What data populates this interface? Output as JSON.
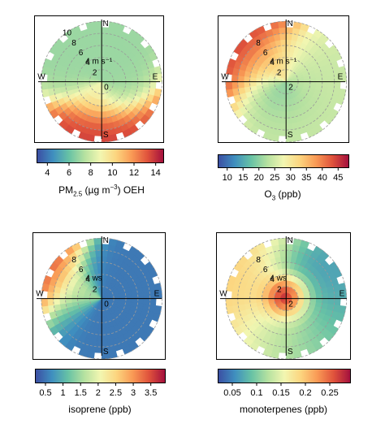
{
  "chart_data": [
    {
      "type": "heatmap",
      "subtype": "polar-plot",
      "variable": "PM2.5 OEH",
      "unit_label": {
        "main": "PM",
        "sub": "2.5",
        "mid": " (µg m",
        "sup": "−3",
        "end": ") OEH"
      },
      "directions": [
        "N",
        "E",
        "S",
        "W"
      ],
      "speed_rings": [
        "2",
        "4",
        "6",
        "8",
        "10"
      ],
      "speed_unit": "4 m s⁻¹",
      "origin_label": "0",
      "colorbar": {
        "ticks": [
          "4",
          "6",
          "8",
          "10",
          "12",
          "14"
        ],
        "min": 3,
        "max": 15
      },
      "regions": [
        {
          "dir_deg": 180,
          "speed": 6.5,
          "spread_deg": 30,
          "value": 14
        },
        {
          "dir_deg": 190,
          "speed": 3,
          "spread_deg": 40,
          "value": 9
        },
        {
          "dir_deg": 120,
          "speed": 3,
          "spread_deg": 40,
          "value": 7
        },
        {
          "dir_deg": 300,
          "speed": 5,
          "spread_deg": 30,
          "value": 7
        }
      ]
    },
    {
      "type": "heatmap",
      "subtype": "polar-plot",
      "variable": "O3",
      "unit_label": {
        "main": "O",
        "sub": "3",
        "mid": " (ppb)",
        "sup": "",
        "end": ""
      },
      "directions": [
        "N",
        "E",
        "S",
        "W"
      ],
      "speed_rings": [
        "2",
        "4",
        "6",
        "8"
      ],
      "speed_unit": "4 m s⁻¹",
      "origin_label": "2",
      "colorbar": {
        "ticks": [
          "10",
          "15",
          "20",
          "25",
          "30",
          "35",
          "40",
          "45"
        ],
        "min": 7,
        "max": 48
      },
      "regions": [
        {
          "dir_deg": 315,
          "speed": 8,
          "spread_deg": 25,
          "value": 45
        },
        {
          "dir_deg": 320,
          "speed": 5,
          "spread_deg": 40,
          "value": 35
        },
        {
          "dir_deg": 90,
          "speed": 5,
          "spread_deg": 80,
          "value": 24
        },
        {
          "dir_deg": 200,
          "speed": 3,
          "spread_deg": 60,
          "value": 20
        }
      ]
    },
    {
      "type": "heatmap",
      "subtype": "polar-plot",
      "variable": "isoprene",
      "unit_label": {
        "main": "isoprene (ppb)",
        "sub": "",
        "mid": "",
        "sup": "",
        "end": ""
      },
      "directions": [
        "N",
        "E",
        "S",
        "W"
      ],
      "speed_rings": [
        "2",
        "4",
        "6",
        "8"
      ],
      "speed_unit": "4 ws",
      "origin_label": "0",
      "colorbar": {
        "ticks": [
          "0.5",
          "1",
          "1.5",
          "2",
          "2.5",
          "3",
          "3.5"
        ],
        "min": 0.2,
        "max": 3.9
      },
      "regions": [
        {
          "dir_deg": 300,
          "speed": 8,
          "spread_deg": 20,
          "value": 3.6
        },
        {
          "dir_deg": 290,
          "speed": 5,
          "spread_deg": 30,
          "value": 1.8
        },
        {
          "dir_deg": 90,
          "speed": 5,
          "spread_deg": 120,
          "value": 0.5
        }
      ]
    },
    {
      "type": "heatmap",
      "subtype": "polar-plot",
      "variable": "monoterpenes",
      "unit_label": {
        "main": "monoterpenes (ppb)",
        "sub": "",
        "mid": "",
        "sup": "",
        "end": ""
      },
      "directions": [
        "N",
        "E",
        "S",
        "W"
      ],
      "speed_rings": [
        "2",
        "4",
        "6",
        "8"
      ],
      "speed_unit": "4 ws",
      "origin_label": "2",
      "colorbar": {
        "ticks": [
          "0.05",
          "0.1",
          "0.15",
          "0.2",
          "0.25"
        ],
        "min": 0.02,
        "max": 0.29
      },
      "regions": [
        {
          "dir_deg": 0,
          "speed": 0.5,
          "spread_deg": 360,
          "value": 0.28
        },
        {
          "dir_deg": 290,
          "speed": 6,
          "spread_deg": 40,
          "value": 0.2
        },
        {
          "dir_deg": 200,
          "speed": 5,
          "spread_deg": 60,
          "value": 0.15
        },
        {
          "dir_deg": 90,
          "speed": 5,
          "spread_deg": 80,
          "value": 0.06
        }
      ]
    }
  ]
}
